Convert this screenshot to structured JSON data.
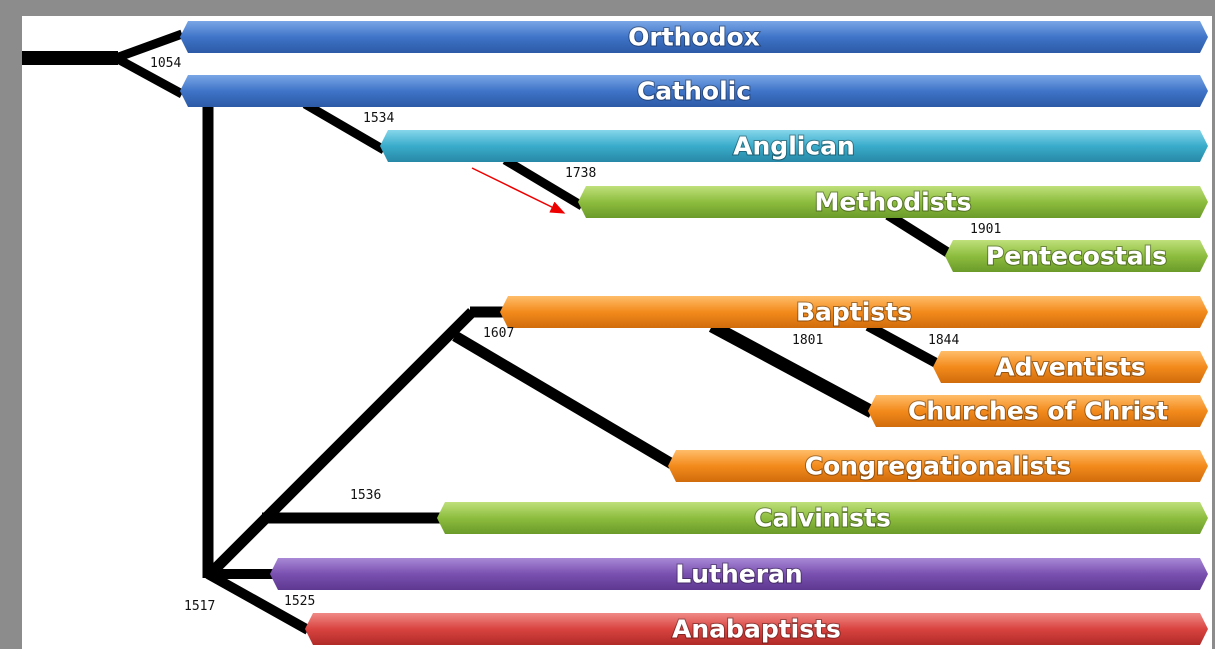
{
  "branches": [
    {
      "label": "Orthodox"
    },
    {
      "label": "Catholic"
    },
    {
      "label": "Anglican"
    },
    {
      "label": "Methodists"
    },
    {
      "label": "Pentecostals"
    },
    {
      "label": "Baptists"
    },
    {
      "label": "Adventists"
    },
    {
      "label": "Churches of Christ"
    },
    {
      "label": "Congregationalists"
    },
    {
      "label": "Calvinists"
    },
    {
      "label": "Lutheran"
    },
    {
      "label": "Anabaptists"
    }
  ],
  "years": [
    "1054",
    "1534",
    "1738",
    "1901",
    "1607",
    "1801",
    "1844",
    "1536",
    "1517",
    "1525"
  ]
}
